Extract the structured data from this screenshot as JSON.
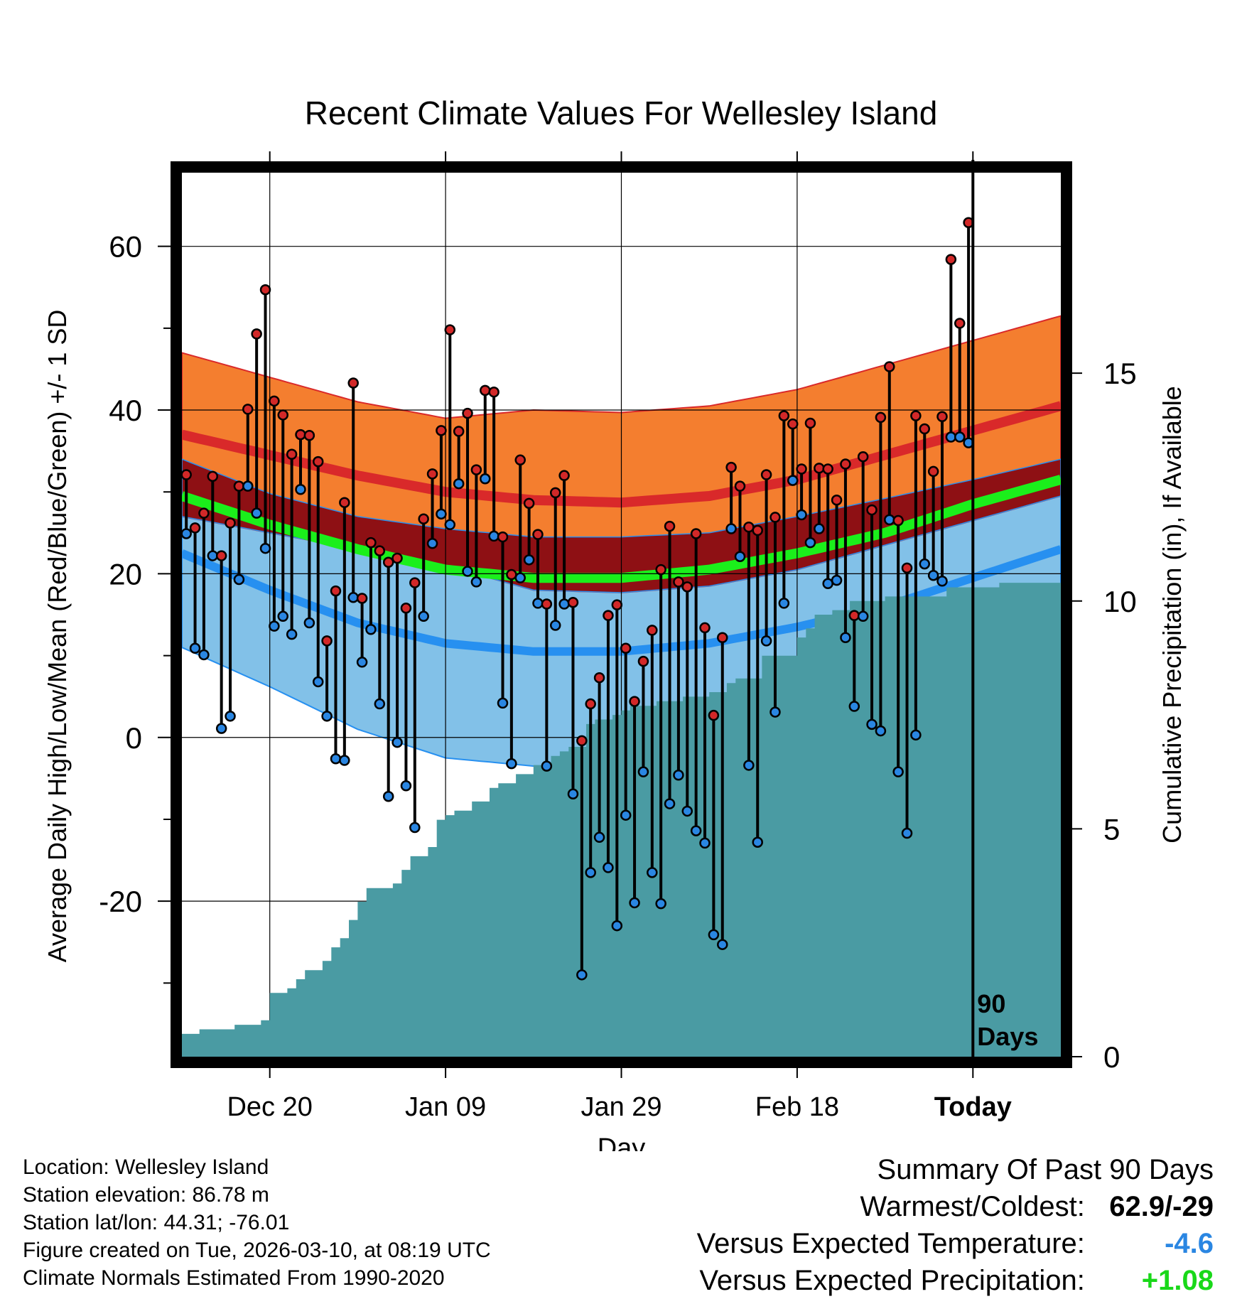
{
  "chart_data": {
    "type": "line",
    "title": "Recent Climate Values For Wellesley Island",
    "xlabel": "Day",
    "ylabel": "Average Daily High/Low/Mean (Red/Blue/Green) +/- 1 SD",
    "y2label": "Cumulative Precipitation (in), If Available",
    "xlim": [
      0,
      100
    ],
    "ylim": [
      -39,
      69
    ],
    "y2lim": [
      0,
      19.4
    ],
    "x_ticks": [
      {
        "x": 10,
        "label": "Dec 20"
      },
      {
        "x": 30,
        "label": "Jan 09"
      },
      {
        "x": 50,
        "label": "Jan 29"
      },
      {
        "x": 70,
        "label": "Feb 18"
      },
      {
        "x": 90,
        "label": "Today"
      }
    ],
    "y_ticks": [
      -20,
      0,
      20,
      40,
      60
    ],
    "y2_ticks": [
      0,
      5,
      10,
      15
    ],
    "today_x": 90,
    "today_annotation": [
      "90",
      "Days"
    ],
    "normals_x": [
      0,
      10,
      20,
      30,
      40,
      50,
      60,
      70,
      80,
      90,
      100
    ],
    "normal_high": [
      37.0,
      34.5,
      32.0,
      30.0,
      29.0,
      28.7,
      29.5,
      31.5,
      34.5,
      37.5,
      40.5
    ],
    "normal_high_sd": [
      10.0,
      9.5,
      9.0,
      9.0,
      11.0,
      11.0,
      11.0,
      11.0,
      11.0,
      11.0,
      11.0
    ],
    "normal_low": [
      22.5,
      18.0,
      14.0,
      11.5,
      10.5,
      10.5,
      11.5,
      13.5,
      16.0,
      19.5,
      23.0
    ],
    "normal_low_sd": [
      11.5,
      11.8,
      13.0,
      14.0,
      14.0,
      14.0,
      13.5,
      13.5,
      13.2,
      12.0,
      11.0
    ],
    "normal_mean": [
      29.5,
      26.0,
      23.0,
      20.5,
      19.5,
      19.5,
      20.5,
      22.5,
      25.0,
      28.5,
      31.5
    ],
    "series": [
      {
        "name": "High",
        "values": [
          32.1,
          25.6,
          27.4,
          31.9,
          22.2,
          26.2,
          30.7,
          40.1,
          49.3,
          54.7,
          41.1,
          39.4,
          34.6,
          37.0,
          36.9,
          33.7,
          11.8,
          17.9,
          28.7,
          43.3,
          17.0,
          23.8,
          22.8,
          21.4,
          21.9,
          15.8,
          18.9,
          26.7,
          32.2,
          37.5,
          49.8,
          37.4,
          39.6,
          32.7,
          42.4,
          42.2,
          24.5,
          19.9,
          33.9,
          28.6,
          24.8,
          16.3,
          29.9,
          32.0,
          16.5,
          -0.4,
          4.1,
          7.3,
          14.9,
          16.2,
          10.9,
          4.4,
          9.3,
          13.1,
          20.5,
          25.8,
          19.0,
          18.4,
          24.9,
          13.4,
          2.7,
          12.2,
          33.0,
          30.7,
          25.7,
          25.3,
          32.1,
          26.9,
          39.3,
          38.3,
          32.8,
          38.4,
          32.9,
          32.8,
          29.0,
          33.4,
          14.9,
          34.3,
          27.8,
          39.1,
          45.3,
          26.5,
          20.7,
          39.3,
          37.7,
          32.5,
          39.2,
          58.4,
          50.6,
          62.9
        ]
      },
      {
        "name": "Low",
        "values": [
          24.9,
          10.9,
          10.1,
          22.2,
          1.1,
          2.6,
          19.3,
          30.7,
          27.4,
          23.1,
          13.6,
          14.8,
          12.6,
          30.3,
          14.0,
          6.8,
          2.6,
          -2.6,
          -2.8,
          17.1,
          9.2,
          13.2,
          4.1,
          -7.2,
          -0.6,
          -5.9,
          -11.0,
          14.8,
          23.7,
          27.3,
          26.0,
          31.0,
          20.3,
          19.0,
          31.6,
          24.6,
          4.2,
          -3.2,
          19.5,
          21.7,
          16.4,
          -3.5,
          13.7,
          16.3,
          -6.9,
          -29.0,
          -16.5,
          -12.2,
          -15.9,
          -23.0,
          -9.5,
          -20.2,
          -4.2,
          -16.5,
          -20.3,
          -8.1,
          -4.6,
          -9.0,
          -11.4,
          -12.9,
          -24.1,
          -25.3,
          25.5,
          22.1,
          -3.4,
          -12.8,
          11.8,
          3.1,
          16.4,
          31.4,
          27.2,
          23.8,
          25.5,
          18.8,
          19.2,
          12.2,
          3.8,
          14.8,
          1.6,
          0.8,
          26.6,
          -4.2,
          -11.7,
          0.3,
          21.2,
          19.8,
          19.1,
          36.7,
          36.7,
          36.0
        ]
      }
    ],
    "precip_x": [
      0,
      2,
      4,
      6,
      8,
      9,
      10,
      12,
      13,
      14,
      16,
      17,
      18,
      19,
      20,
      21,
      22,
      24,
      25,
      26,
      28,
      29,
      30,
      31,
      33,
      35,
      36,
      38,
      40,
      42,
      43,
      44,
      46,
      47,
      48,
      49,
      50,
      51,
      52,
      53,
      54,
      56,
      57,
      58,
      60,
      61,
      62,
      63,
      64,
      66,
      67,
      68,
      70,
      71,
      72,
      74,
      76,
      78,
      80,
      82,
      84,
      86,
      87,
      88,
      89,
      90,
      91,
      93,
      95,
      98,
      100
    ],
    "precip_values": [
      0.5,
      0.6,
      0.6,
      0.7,
      0.7,
      0.8,
      1.4,
      1.5,
      1.7,
      1.9,
      2.1,
      2.4,
      2.6,
      3.0,
      3.4,
      3.7,
      3.7,
      3.8,
      4.1,
      4.4,
      4.6,
      5.2,
      5.3,
      5.4,
      5.6,
      5.9,
      6.0,
      6.2,
      6.4,
      6.6,
      6.7,
      6.8,
      7.3,
      7.4,
      7.4,
      7.5,
      7.6,
      7.7,
      7.7,
      7.7,
      7.8,
      7.8,
      7.9,
      7.9,
      8.0,
      8.0,
      8.2,
      8.3,
      8.3,
      8.8,
      8.8,
      8.8,
      9.2,
      9.4,
      9.7,
      9.8,
      10.0,
      10.0,
      10.1,
      10.1,
      10.1,
      10.1,
      10.3,
      10.3,
      10.3,
      10.3,
      10.3,
      10.4,
      10.4,
      10.4,
      10.4
    ]
  },
  "colors": {
    "high_band": "#f47e2f",
    "high_line": "#d9292a",
    "mean_band": "#8e1014",
    "mean_line": "#1bef1b",
    "low_band": "#82c1e8",
    "low_line": "#2790f0",
    "precip": "#4a9ba3",
    "dot_high": "#d22828",
    "dot_low": "#2a86e2",
    "cold_value": "#2a86e2",
    "precip_value": "#19d819"
  },
  "footer": {
    "location": "Location: Wellesley Island",
    "elevation": "Station elevation: 86.78 m",
    "latlon": "Station lat/lon: 44.31; -76.01",
    "created": "Figure created on Tue, 2026-03-10, at 08:19 UTC",
    "normals": "Climate Normals Estimated From 1990-2020"
  },
  "summary": {
    "title": "Summary Of Past 90 Days",
    "warmest_coldest_label": "Warmest/Coldest:",
    "warmest_coldest_value": "62.9/-29",
    "temp_label": "Versus Expected Temperature:",
    "temp_value": "-4.6",
    "precip_label": "Versus Expected Precipitation:",
    "precip_value": "+1.08"
  }
}
